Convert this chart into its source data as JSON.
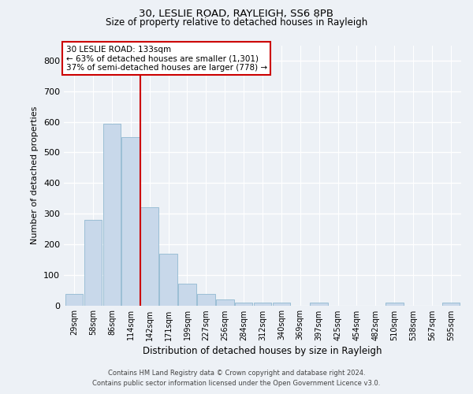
{
  "title1": "30, LESLIE ROAD, RAYLEIGH, SS6 8PB",
  "title2": "Size of property relative to detached houses in Rayleigh",
  "xlabel": "Distribution of detached houses by size in Rayleigh",
  "ylabel": "Number of detached properties",
  "categories": [
    "29sqm",
    "58sqm",
    "86sqm",
    "114sqm",
    "142sqm",
    "171sqm",
    "199sqm",
    "227sqm",
    "256sqm",
    "284sqm",
    "312sqm",
    "340sqm",
    "369sqm",
    "397sqm",
    "425sqm",
    "454sqm",
    "482sqm",
    "510sqm",
    "538sqm",
    "567sqm",
    "595sqm"
  ],
  "values": [
    38,
    280,
    595,
    550,
    320,
    170,
    70,
    38,
    20,
    10,
    8,
    8,
    0,
    8,
    0,
    0,
    0,
    8,
    0,
    0,
    8
  ],
  "bar_color": "#c8d8ea",
  "bar_edge_color": "#90b8d0",
  "vline_pos": 3.5,
  "annotation_line1": "30 LESLIE ROAD: 133sqm",
  "annotation_line2": "← 63% of detached houses are smaller (1,301)",
  "annotation_line3": "37% of semi-detached houses are larger (778) →",
  "annotation_box_fc": "#ffffff",
  "annotation_box_ec": "#cc0000",
  "vline_color": "#cc0000",
  "ylim": [
    0,
    850
  ],
  "yticks": [
    0,
    100,
    200,
    300,
    400,
    500,
    600,
    700,
    800
  ],
  "footer1": "Contains HM Land Registry data © Crown copyright and database right 2024.",
  "footer2": "Contains public sector information licensed under the Open Government Licence v3.0.",
  "bg_color": "#edf1f6",
  "grid_color": "#ffffff",
  "title1_fontsize": 9.5,
  "title2_fontsize": 8.5,
  "ylabel_fontsize": 8,
  "xlabel_fontsize": 8.5,
  "ytick_fontsize": 8,
  "xtick_fontsize": 7,
  "ann_fontsize": 7.5,
  "footer_fontsize": 6
}
